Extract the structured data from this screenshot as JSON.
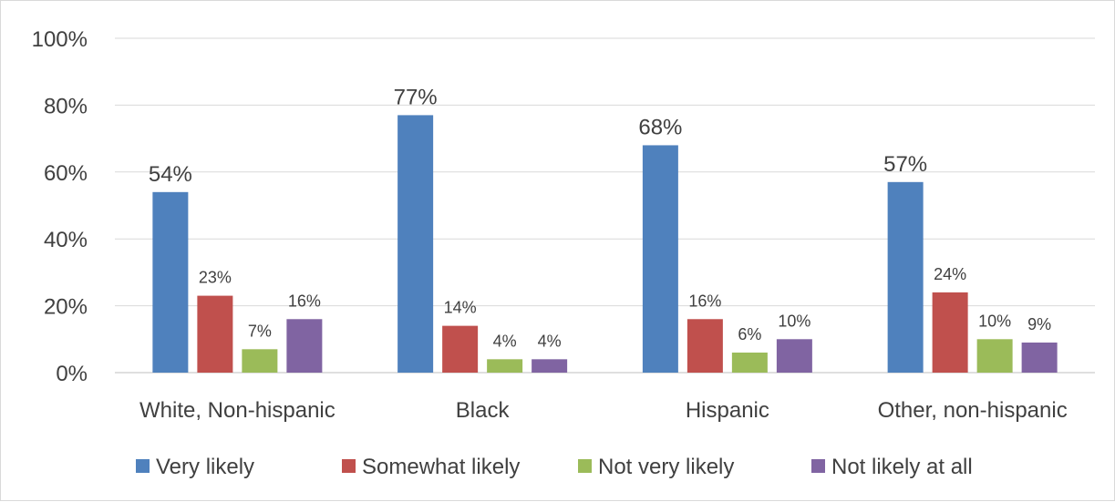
{
  "chart_data": {
    "type": "bar",
    "title": "",
    "xlabel": "",
    "ylabel": "",
    "ylim": [
      0,
      100
    ],
    "yticks": [
      0,
      20,
      40,
      60,
      80,
      100
    ],
    "ytick_format": "%",
    "grid": true,
    "legend_position": "bottom",
    "categories": [
      "White, Non-hispanic",
      "Black",
      "Hispanic",
      "Other, non-hispanic"
    ],
    "series": [
      {
        "name": "Very likely",
        "color": "#4f81bd",
        "values": [
          54,
          77,
          68,
          57
        ]
      },
      {
        "name": "Somewhat likely",
        "color": "#c0504d",
        "values": [
          23,
          14,
          16,
          24
        ]
      },
      {
        "name": "Not very likely",
        "color": "#9bbb59",
        "values": [
          7,
          4,
          6,
          10
        ]
      },
      {
        "name": "Not likely at all",
        "color": "#8064a2",
        "values": [
          16,
          4,
          10,
          9
        ]
      }
    ]
  }
}
